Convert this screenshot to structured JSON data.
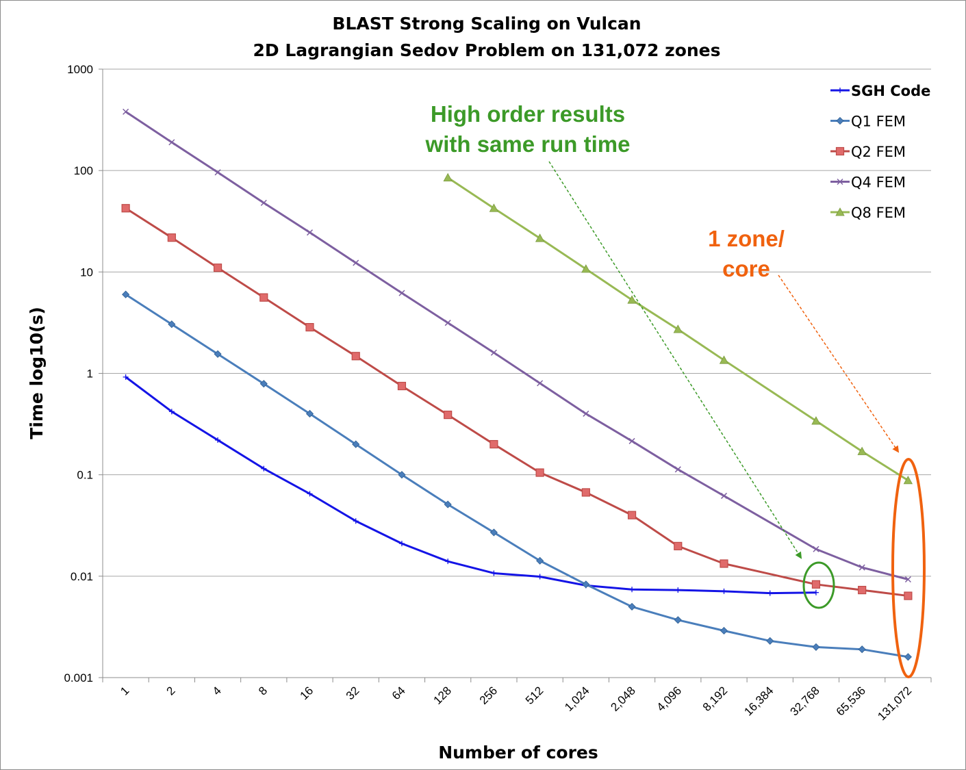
{
  "chart_data": {
    "type": "line",
    "title": "BLAST Strong Scaling on Vulcan",
    "subtitle": "2D Lagrangian Sedov Problem on 131,072 zones",
    "xlabel": "Number of cores",
    "ylabel": "Time log10(s)",
    "yscale": "log",
    "ylim": [
      0.001,
      1000
    ],
    "y_ticks": [
      "0.001",
      "0.01",
      "0.1",
      "1",
      "10",
      "100",
      "1000"
    ],
    "grid": "horizontal",
    "legend_position": "top-right",
    "categories": [
      "1",
      "2",
      "4",
      "8",
      "16",
      "32",
      "64",
      "128",
      "256",
      "512",
      "1,024",
      "2,048",
      "4,096",
      "8,192",
      "16,384",
      "32,768",
      "65,536",
      "131,072"
    ],
    "series": [
      {
        "name": "SGH Code",
        "color": "#1414e6",
        "marker": "plus",
        "values": [
          0.92,
          0.42,
          0.22,
          0.115,
          0.065,
          0.035,
          0.021,
          0.014,
          0.0107,
          0.0099,
          0.0081,
          0.0074,
          0.0073,
          0.0071,
          0.0068,
          0.0069,
          null,
          null
        ]
      },
      {
        "name": "Q1 FEM",
        "color": "#4a7ebb",
        "marker": "diamond",
        "values": [
          6.0,
          3.05,
          1.55,
          0.79,
          0.4,
          0.2,
          0.1,
          0.051,
          0.027,
          0.0142,
          0.0083,
          0.005,
          0.0037,
          0.0029,
          0.0023,
          0.002,
          0.0019,
          0.0016
        ]
      },
      {
        "name": "Q2 FEM",
        "color": "#be4b48",
        "marker": "square",
        "values": [
          42.5,
          21.8,
          11.0,
          5.6,
          2.85,
          1.48,
          0.75,
          0.39,
          0.2,
          0.105,
          0.067,
          0.04,
          0.0198,
          0.0133,
          null,
          0.0083,
          0.0073,
          0.0064
        ]
      },
      {
        "name": "Q4 FEM",
        "color": "#7d5fa0",
        "marker": "x",
        "values": [
          380,
          190,
          96,
          48,
          24.5,
          12.3,
          6.2,
          3.15,
          1.6,
          0.8,
          0.4,
          0.215,
          0.113,
          0.062,
          null,
          0.0185,
          0.0122,
          0.0093
        ]
      },
      {
        "name": "Q8 FEM",
        "color": "#98b954",
        "marker": "triangle",
        "values": [
          null,
          null,
          null,
          null,
          null,
          null,
          null,
          85,
          42.5,
          21.5,
          10.7,
          5.3,
          2.72,
          1.35,
          null,
          0.34,
          0.17,
          0.088
        ]
      }
    ],
    "annotations": [
      {
        "lines": [
          "High order results",
          "with same run time"
        ],
        "color": "#3c9a28",
        "target_category": "32,768"
      },
      {
        "lines": [
          "1 zone/",
          "core"
        ],
        "color": "#f0620f",
        "target_category": "131,072"
      }
    ]
  }
}
